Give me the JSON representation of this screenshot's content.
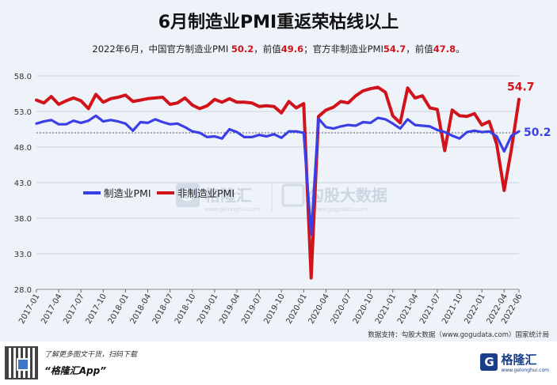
{
  "title": "6月制造业PMI重返荣枯线以上",
  "subtitle": {
    "prefix": "2022年6月，中国官方制造业PMI ",
    "mfg_value": "50.2",
    "mid1": "，前值",
    "mfg_prev": "49.6",
    "mid2": "；官方非制造业PMI",
    "nonmfg_value": "54.7",
    "mid3": "，前值",
    "nonmfg_prev": "47.8",
    "suffix": "。"
  },
  "source": "数据支持：勾股大数据（www.gogudata.com）国家统计局",
  "watermark": {
    "brand1": "格隆汇",
    "brand1_url": "www.gelonghui.com",
    "brand2": "勾股大数据",
    "brand2_url": "www.gogudata.com"
  },
  "footer": {
    "line1": "了解更多图文干货，扫码下载",
    "line2": "“格隆汇App”",
    "logo_mark": "G",
    "logo_text": "格隆汇",
    "logo_url": "www.gelonghui.com"
  },
  "colors": {
    "manufacturing": "#3b3fe6",
    "non_manufacturing": "#d1141b",
    "background": "#eef3f9"
  },
  "chart_data": {
    "type": "line",
    "title": "6月制造业PMI重返荣枯线以上",
    "ylim": [
      28.0,
      58.0
    ],
    "yticks": [
      "28.0",
      "33.0",
      "38.0",
      "43.0",
      "48.0",
      "53.0",
      "58.0"
    ],
    "reference_line": 50,
    "legend_position": "left-middle",
    "grid": "horizontal",
    "x": [
      "2017-01",
      "2017-02",
      "2017-03",
      "2017-04",
      "2017-05",
      "2017-06",
      "2017-07",
      "2017-08",
      "2017-09",
      "2017-10",
      "2017-11",
      "2017-12",
      "2018-01",
      "2018-02",
      "2018-03",
      "2018-04",
      "2018-05",
      "2018-06",
      "2018-07",
      "2018-08",
      "2018-09",
      "2018-10",
      "2018-11",
      "2018-12",
      "2019-01",
      "2019-02",
      "2019-03",
      "2019-04",
      "2019-05",
      "2019-06",
      "2019-07",
      "2019-08",
      "2019-09",
      "2019-10",
      "2019-11",
      "2019-12",
      "2020-01",
      "2020-02",
      "2020-03",
      "2020-04",
      "2020-05",
      "2020-06",
      "2020-07",
      "2020-08",
      "2020-09",
      "2020-10",
      "2020-11",
      "2020-12",
      "2021-01",
      "2021-02",
      "2021-03",
      "2021-04",
      "2021-05",
      "2021-06",
      "2021-07",
      "2021-08",
      "2021-09",
      "2021-10",
      "2021-11",
      "2021-12",
      "2022-01",
      "2022-02",
      "2022-03",
      "2022-04",
      "2022-05",
      "2022-06"
    ],
    "xtick_labels": [
      "2017-01",
      "2017-04",
      "2017-07",
      "2017-10",
      "2018-01",
      "2018-04",
      "2018-07",
      "2018-10",
      "2019-01",
      "2019-04",
      "2019-07",
      "2019-10",
      "2020-01",
      "2020-04",
      "2020-07",
      "2020-10",
      "2021-01",
      "2021-04",
      "2021-07",
      "2021-10",
      "2022-01",
      "2022-04",
      "2022-06"
    ],
    "series": [
      {
        "name": "制造业PMI",
        "color": "#3b3fe6",
        "end_label": "50.2",
        "values": [
          51.3,
          51.6,
          51.8,
          51.2,
          51.2,
          51.7,
          51.4,
          51.7,
          52.4,
          51.6,
          51.8,
          51.6,
          51.3,
          50.3,
          51.5,
          51.4,
          51.9,
          51.5,
          51.2,
          51.3,
          50.8,
          50.2,
          50.0,
          49.4,
          49.5,
          49.2,
          50.5,
          50.1,
          49.4,
          49.4,
          49.7,
          49.5,
          49.8,
          49.3,
          50.2,
          50.2,
          50.0,
          35.7,
          52.0,
          50.8,
          50.6,
          50.9,
          51.1,
          51.0,
          51.5,
          51.4,
          52.1,
          51.9,
          51.3,
          50.6,
          51.9,
          51.1,
          51.0,
          50.9,
          50.4,
          50.1,
          49.6,
          49.2,
          50.1,
          50.3,
          50.1,
          50.2,
          49.5,
          47.4,
          49.6,
          50.2
        ]
      },
      {
        "name": "非制造业PMI",
        "color": "#d1141b",
        "end_label": "54.7",
        "values": [
          54.6,
          54.2,
          55.1,
          54.0,
          54.5,
          54.9,
          54.5,
          53.4,
          55.4,
          54.3,
          54.8,
          55.0,
          55.3,
          54.4,
          54.6,
          54.8,
          54.9,
          55.0,
          54.0,
          54.2,
          54.9,
          53.9,
          53.4,
          53.8,
          54.7,
          54.3,
          54.8,
          54.3,
          54.3,
          54.2,
          53.7,
          53.8,
          53.7,
          52.8,
          54.4,
          53.5,
          54.1,
          29.6,
          52.3,
          53.2,
          53.6,
          54.4,
          54.2,
          55.2,
          55.9,
          56.2,
          56.4,
          55.7,
          52.4,
          51.4,
          56.3,
          54.9,
          55.2,
          53.5,
          53.3,
          47.5,
          53.2,
          52.4,
          52.3,
          52.7,
          51.1,
          51.6,
          48.4,
          41.9,
          47.8,
          54.7
        ]
      }
    ]
  }
}
